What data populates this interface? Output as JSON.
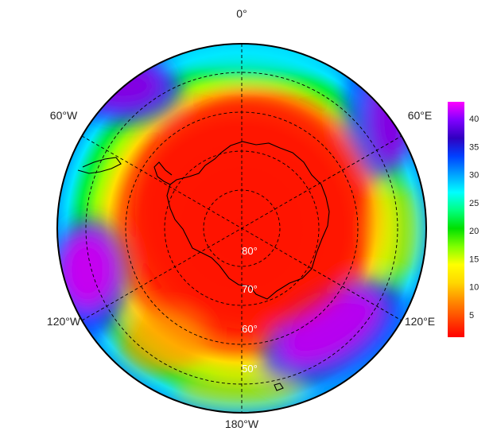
{
  "map": {
    "projection": "south-polar-stereographic",
    "longitude_labels": {
      "top": "0°",
      "bottom": "180°W",
      "upper_left": "60°W",
      "upper_right": "60°E",
      "lower_left": "120°W",
      "lower_right": "120°E"
    },
    "latitude_labels": [
      "80°",
      "70°",
      "60°",
      "50°"
    ],
    "colorbar": {
      "ticks": [
        "5",
        "10",
        "15",
        "20",
        "25",
        "30",
        "35",
        "40"
      ],
      "min": 1,
      "max": 43,
      "colors": [
        "#ff0000",
        "#ff4500",
        "#ff8c00",
        "#ffd700",
        "#ffff00",
        "#7fff00",
        "#00e000",
        "#00ff7f",
        "#00ffff",
        "#00a0ff",
        "#0040ff",
        "#3000c0",
        "#8000ff",
        "#ff00ff"
      ]
    },
    "colors": {
      "interior": "#ff2200",
      "ring_edge": "#00ff40",
      "grid_line": "#000000",
      "coastline": "#000000"
    }
  }
}
